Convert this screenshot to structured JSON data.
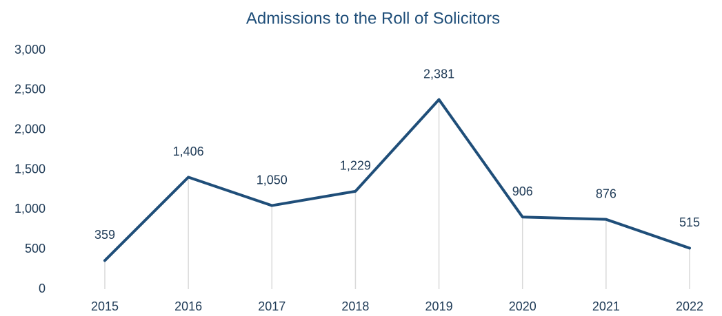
{
  "chart_data": {
    "type": "line",
    "title": "Admissions to the Roll of Solicitors",
    "categories": [
      "2015",
      "2016",
      "2017",
      "2018",
      "2019",
      "2020",
      "2021",
      "2022"
    ],
    "values": [
      359,
      1406,
      1050,
      1229,
      2381,
      906,
      876,
      515
    ],
    "value_labels": [
      "359",
      "1,406",
      "1,050",
      "1,229",
      "2,381",
      "906",
      "876",
      "515"
    ],
    "color": "#1f4e79",
    "ylim": [
      0,
      3000
    ],
    "yticks": [
      0,
      500,
      {
        "value": 1000,
        "label": "1,000"
      },
      {
        "value": 1500,
        "label": "1,500"
      },
      {
        "value": 2000,
        "label": "2,000"
      },
      {
        "value": 2500,
        "label": "2,500"
      },
      {
        "value": 3000,
        "label": "3,000"
      }
    ],
    "grid": false
  }
}
